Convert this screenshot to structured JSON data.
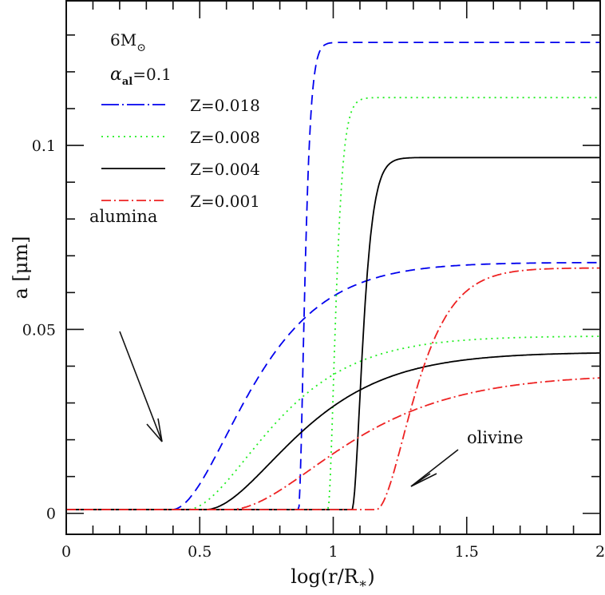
{
  "chart_data": {
    "type": "line",
    "title": "",
    "xlabel": "log(r/R*)",
    "ylabel": "a [μm]",
    "xlim": [
      0,
      2
    ],
    "ylim": [
      -0.0057,
      0.1393
    ],
    "x_ticks": {
      "major": [
        0,
        0.5,
        1,
        1.5,
        2
      ],
      "major_labels": [
        "0",
        "0.5",
        "1",
        "1.5",
        "2"
      ],
      "minor_step": 0.1
    },
    "y_ticks": {
      "major": [
        0,
        0.05,
        0.1
      ],
      "major_labels": [
        "0",
        "0.05",
        "0.1"
      ],
      "minor_step": 0.01
    },
    "grid": false,
    "legend_position": "upper-left",
    "annotations": {
      "mass_label": "6M",
      "mass_sub": "⊙",
      "alpha_label": "α",
      "alpha_sub": "al",
      "alpha_value": "=0.1",
      "alumina_label": "alumina",
      "olivine_label": "olivine"
    },
    "series": [
      {
        "name": "Z=0.018",
        "color": "#0000ee",
        "style": "dashed",
        "alumina": {
          "onset": 0.395,
          "plateau": 0.0682,
          "rise": 0.5
        },
        "olivine": {
          "onset": 0.87,
          "plateau": 0.128,
          "rise": 0.04
        }
      },
      {
        "name": "Z=0.008",
        "color": "#22ee22",
        "style": "dotted",
        "alumina": {
          "onset": 0.45,
          "plateau": 0.0482,
          "rise": 0.55
        },
        "olivine": {
          "onset": 0.98,
          "plateau": 0.113,
          "rise": 0.05
        }
      },
      {
        "name": "Z=0.004",
        "color": "#000000",
        "style": "solid",
        "alumina": {
          "onset": 0.52,
          "plateau": 0.0438,
          "rise": 0.6
        },
        "olivine": {
          "onset": 1.07,
          "plateau": 0.0967,
          "rise": 0.07
        }
      },
      {
        "name": "Z=0.001",
        "color": "#ee2222",
        "style": "dashdot",
        "alumina": {
          "onset": 0.61,
          "plateau": 0.0378,
          "rise": 0.75
        },
        "olivine": {
          "onset": 1.16,
          "plateau": 0.0667,
          "rise": 0.25
        }
      }
    ],
    "baseline": 0.001
  }
}
